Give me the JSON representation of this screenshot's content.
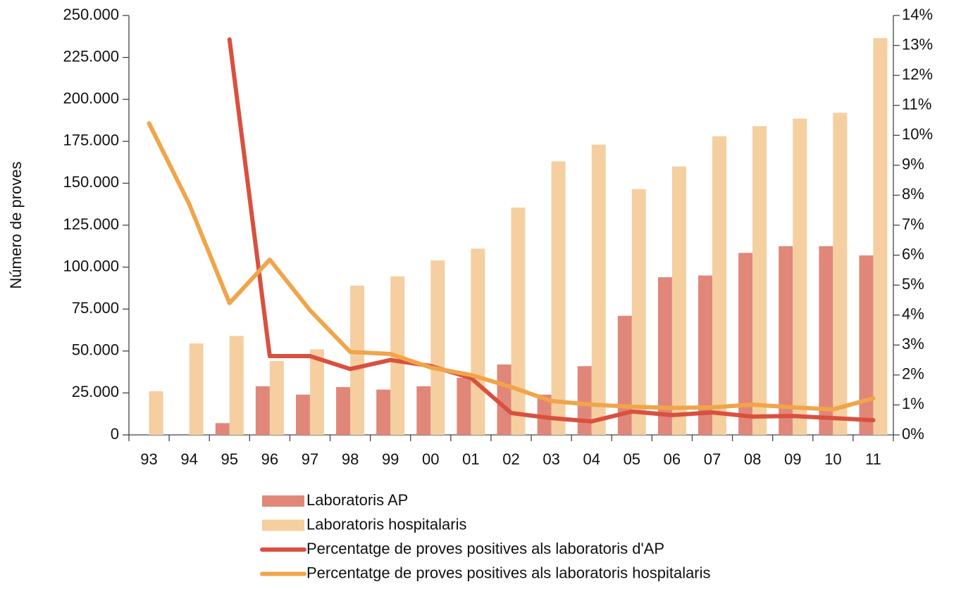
{
  "chart_data": {
    "type": "combo",
    "y_label": "Número de proves",
    "categories": [
      "93",
      "94",
      "95",
      "96",
      "97",
      "98",
      "99",
      "00",
      "01",
      "02",
      "03",
      "04",
      "05",
      "06",
      "07",
      "08",
      "09",
      "10",
      "11"
    ],
    "series": [
      {
        "name": "Laboratoris AP",
        "type": "bar",
        "color": "#e0877a",
        "values": [
          null,
          null,
          7000,
          29000,
          24000,
          28500,
          27000,
          29000,
          34000,
          42000,
          24000,
          41000,
          71000,
          94000,
          95000,
          108500,
          112500,
          112500,
          107000
        ]
      },
      {
        "name": "Laboratoris hospitalaris",
        "type": "bar",
        "color": "#f5cfa0",
        "values": [
          26000,
          54500,
          59000,
          44000,
          51000,
          89000,
          94500,
          104000,
          111000,
          135500,
          163000,
          173000,
          146500,
          160000,
          178000,
          184000,
          188500,
          192000,
          236500
        ]
      },
      {
        "name": "Percentatge de proves positives als laboratoris d'AP",
        "type": "line",
        "axis": "y2",
        "color": "#d9503f",
        "values": [
          null,
          null,
          13.2,
          2.63,
          2.63,
          2.2,
          2.5,
          2.3,
          1.9,
          0.73,
          0.56,
          0.45,
          0.78,
          0.66,
          0.75,
          0.61,
          0.63,
          0.56,
          0.49
        ]
      },
      {
        "name": "Percentatge de proves positives als laboratoris hospitalaris",
        "type": "line",
        "axis": "y2",
        "color": "#f0a54a",
        "values": [
          10.4,
          7.7,
          4.4,
          5.85,
          4.16,
          2.77,
          2.7,
          2.25,
          2.0,
          1.6,
          1.13,
          1.01,
          0.94,
          0.9,
          0.92,
          1.01,
          0.92,
          0.85,
          1.22
        ]
      }
    ],
    "ylim": [
      0,
      250000
    ],
    "yticks": [
      0,
      {
        "value": 25000,
        "label": "25.000"
      },
      {
        "value": 50000,
        "label": "50.000"
      },
      {
        "value": 75000,
        "label": "75.000"
      },
      {
        "value": 100000,
        "label": "100.000"
      },
      {
        "value": 125000,
        "label": "125.000"
      },
      {
        "value": 150000,
        "label": "150.000"
      },
      {
        "value": 175000,
        "label": "175.000"
      },
      {
        "value": 200000,
        "label": "200.000"
      },
      {
        "value": 225000,
        "label": "225.000"
      },
      {
        "value": 250000,
        "label": "250.000"
      }
    ],
    "y2lim": [
      0,
      14
    ],
    "y2ticks": [
      {
        "value": 0,
        "label": "0%"
      },
      {
        "value": 1,
        "label": "1%"
      },
      {
        "value": 2,
        "label": "2%"
      },
      {
        "value": 3,
        "label": "3%"
      },
      {
        "value": 4,
        "label": "4%"
      },
      {
        "value": 5,
        "label": "5%"
      },
      {
        "value": 6,
        "label": "6%"
      },
      {
        "value": 7,
        "label": "7%"
      },
      {
        "value": 8,
        "label": "8%"
      },
      {
        "value": 9,
        "label": "9%"
      },
      {
        "value": 10,
        "label": "10%"
      },
      {
        "value": 11,
        "label": "11%"
      },
      {
        "value": 12,
        "label": "12%"
      },
      {
        "value": 13,
        "label": "13%"
      },
      {
        "value": 14,
        "label": "14%"
      }
    ],
    "grid": false,
    "legend": "bottom"
  }
}
